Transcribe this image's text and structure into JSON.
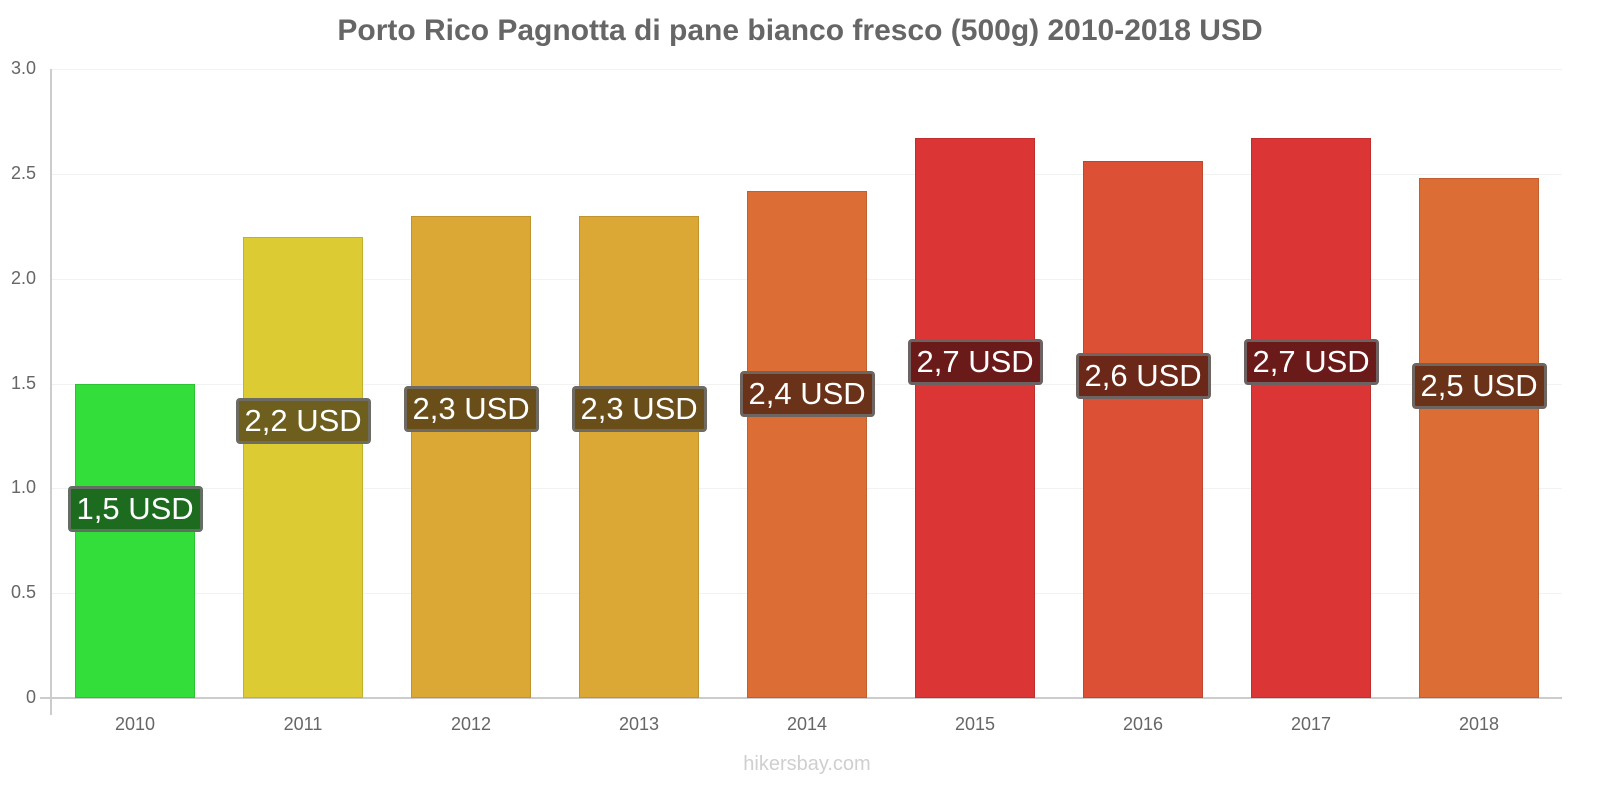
{
  "title": "Porto Rico Pagnotta di pane bianco fresco (500g) 2010-2018 USD",
  "watermark": "hikersbay.com",
  "y_ticks": [
    "0",
    "0.5",
    "1.0",
    "1.5",
    "2.0",
    "2.5",
    "3.0"
  ],
  "bars": [
    {
      "year": "2010",
      "value": 1.5,
      "label": "1,5 USD",
      "color": "#33dd3a",
      "label_bg": "#1c6b1f"
    },
    {
      "year": "2011",
      "value": 2.2,
      "label": "2,2 USD",
      "color": "#dccb33",
      "label_bg": "#6e5f1e"
    },
    {
      "year": "2012",
      "value": 2.3,
      "label": "2,3 USD",
      "color": "#dca835",
      "label_bg": "#6a4e1a"
    },
    {
      "year": "2013",
      "value": 2.3,
      "label": "2,3 USD",
      "color": "#dca835",
      "label_bg": "#6a4e1a"
    },
    {
      "year": "2014",
      "value": 2.42,
      "label": "2,4 USD",
      "color": "#dc6e35",
      "label_bg": "#6a3218"
    },
    {
      "year": "2015",
      "value": 2.67,
      "label": "2,7 USD",
      "color": "#dc3535",
      "label_bg": "#6b1a1a"
    },
    {
      "year": "2016",
      "value": 2.56,
      "label": "2,6 USD",
      "color": "#dc5035",
      "label_bg": "#6b2818"
    },
    {
      "year": "2017",
      "value": 2.67,
      "label": "2,7 USD",
      "color": "#dc3535",
      "label_bg": "#6b1a1a"
    },
    {
      "year": "2018",
      "value": 2.48,
      "label": "2,5 USD",
      "color": "#dc6e35",
      "label_bg": "#6a3218"
    }
  ],
  "chart_data": {
    "type": "bar",
    "title": "Porto Rico Pagnotta di pane bianco fresco (500g) 2010-2018 USD",
    "categories": [
      "2010",
      "2011",
      "2012",
      "2013",
      "2014",
      "2015",
      "2016",
      "2017",
      "2018"
    ],
    "values": [
      1.5,
      2.2,
      2.3,
      2.3,
      2.42,
      2.67,
      2.56,
      2.67,
      2.48
    ],
    "data_labels": [
      "1,5 USD",
      "2,2 USD",
      "2,3 USD",
      "2,3 USD",
      "2,4 USD",
      "2,7 USD",
      "2,6 USD",
      "2,7 USD",
      "2,5 USD"
    ],
    "xlabel": "",
    "ylabel": "",
    "ylim": [
      0,
      3.0
    ],
    "y_ticks": [
      0,
      0.5,
      1.0,
      1.5,
      2.0,
      2.5,
      3.0
    ],
    "grid": true,
    "legend": "none",
    "source": "hikersbay.com"
  }
}
